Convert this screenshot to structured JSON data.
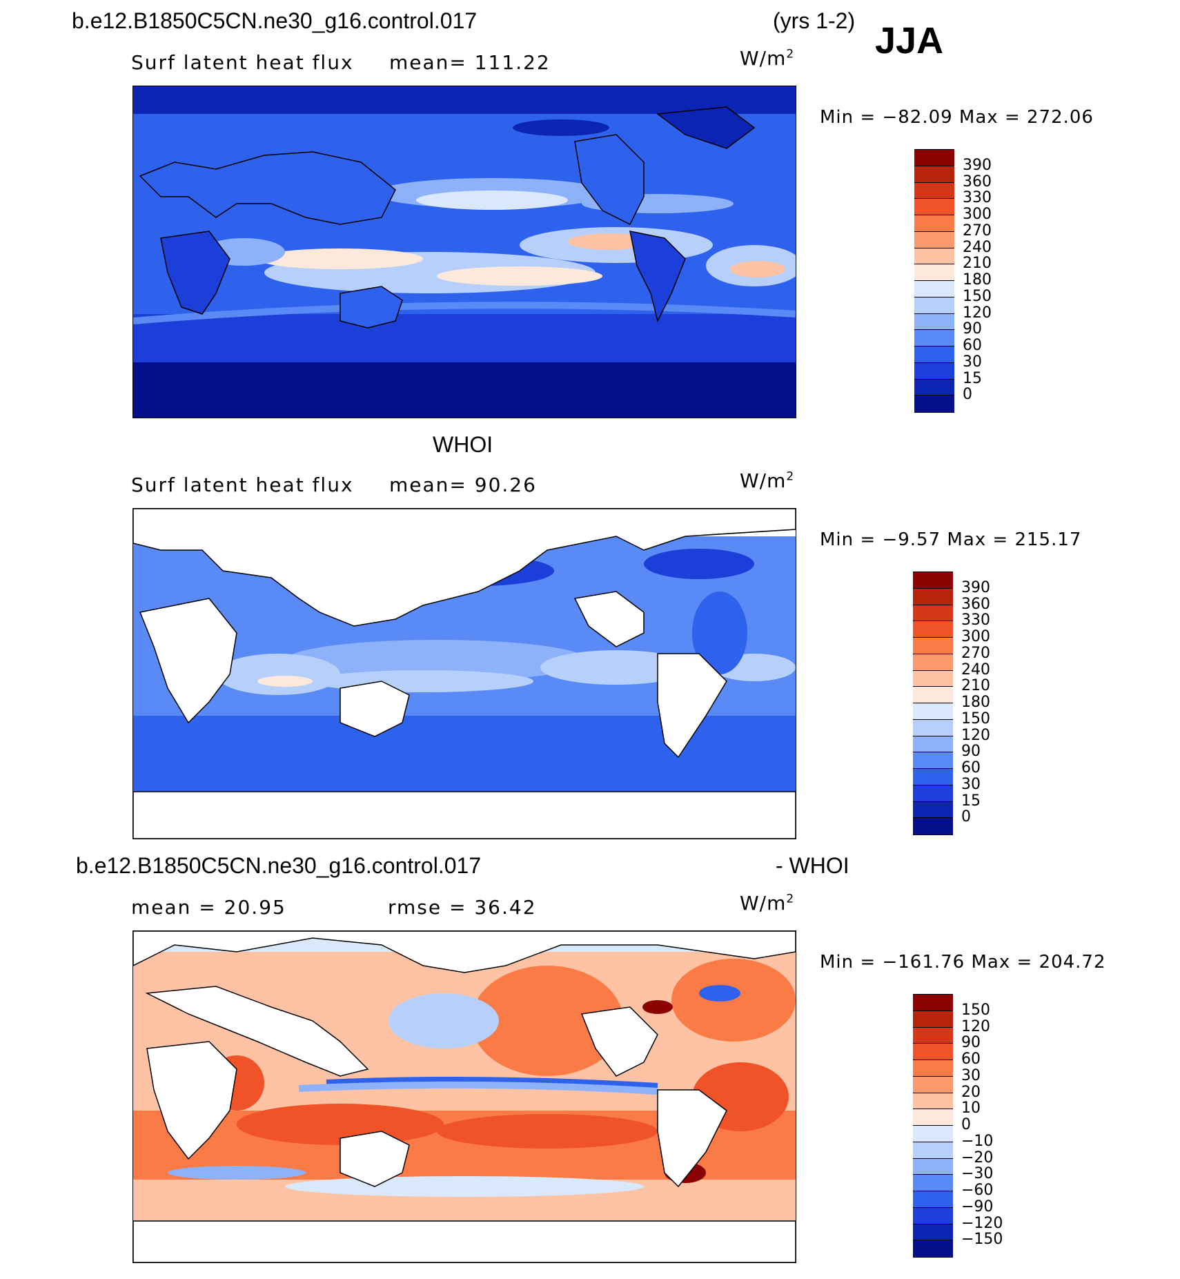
{
  "case_title": "b.e12.B1850C5CN.ne30_g16.control.017",
  "years": "(yrs 1-2)",
  "season": "JJA",
  "panels": [
    {
      "variable": "Surf latent heat flux",
      "stat_text": "mean=  111.22",
      "units_base": "W/m",
      "units_exp": "2",
      "minmax": "Min = −82.09  Max = 272.06",
      "legend_levels": [
        "390",
        "360",
        "330",
        "300",
        "270",
        "240",
        "210",
        "180",
        "150",
        "120",
        "90",
        "60",
        "30",
        "15",
        "0"
      ],
      "legend_colors": [
        "#8b0000",
        "#b7240b",
        "#d5371b",
        "#ef5327",
        "#fa7b45",
        "#fc9a6e",
        "#fdc3a4",
        "#fde9dc",
        "#d9e9fb",
        "#b6d0fb",
        "#8eb2fa",
        "#5a8af5",
        "#2f62ec",
        "#1b3fd8",
        "#0b24b4",
        "#050f8c"
      ]
    },
    {
      "title": "WHOI",
      "variable": "Surf latent heat flux",
      "stat_text": "mean=   90.26",
      "units_base": "W/m",
      "units_exp": "2",
      "minmax": "Min =   −9.57  Max = 215.17",
      "legend_levels": [
        "390",
        "360",
        "330",
        "300",
        "270",
        "240",
        "210",
        "180",
        "150",
        "120",
        "90",
        "60",
        "30",
        "15",
        "0"
      ],
      "legend_colors": [
        "#8b0000",
        "#b7240b",
        "#d5371b",
        "#ef5327",
        "#fa7b45",
        "#fc9a6e",
        "#fdc3a4",
        "#fde9dc",
        "#d9e9fb",
        "#b6d0fb",
        "#8eb2fa",
        "#5a8af5",
        "#2f62ec",
        "#1b3fd8",
        "#0b24b4",
        "#050f8c"
      ]
    },
    {
      "title_left": "b.e12.B1850C5CN.ne30_g16.control.017",
      "title_right": "- WHOI",
      "stat_left": "mean =    20.95",
      "stat_right": "rmse =    36.42",
      "units_base": "W/m",
      "units_exp": "2",
      "minmax": "Min = −161.76  Max = 204.72",
      "legend_levels": [
        "150",
        "120",
        "90",
        "60",
        "30",
        "20",
        "10",
        "0",
        "−10",
        "−20",
        "−30",
        "−60",
        "−90",
        "−120",
        "−150"
      ],
      "legend_colors": [
        "#8b0000",
        "#b7240b",
        "#d5371b",
        "#ef5327",
        "#fa7b45",
        "#fc9a6e",
        "#fdc3a4",
        "#fde9dc",
        "#d9e9fb",
        "#b6d0fb",
        "#8eb2fa",
        "#5a8af5",
        "#2f62ec",
        "#1b3fd8",
        "#0b24b4",
        "#050f8c"
      ]
    }
  ],
  "map_colors": {
    "land": "#ffffff",
    "coast": "#000000"
  }
}
